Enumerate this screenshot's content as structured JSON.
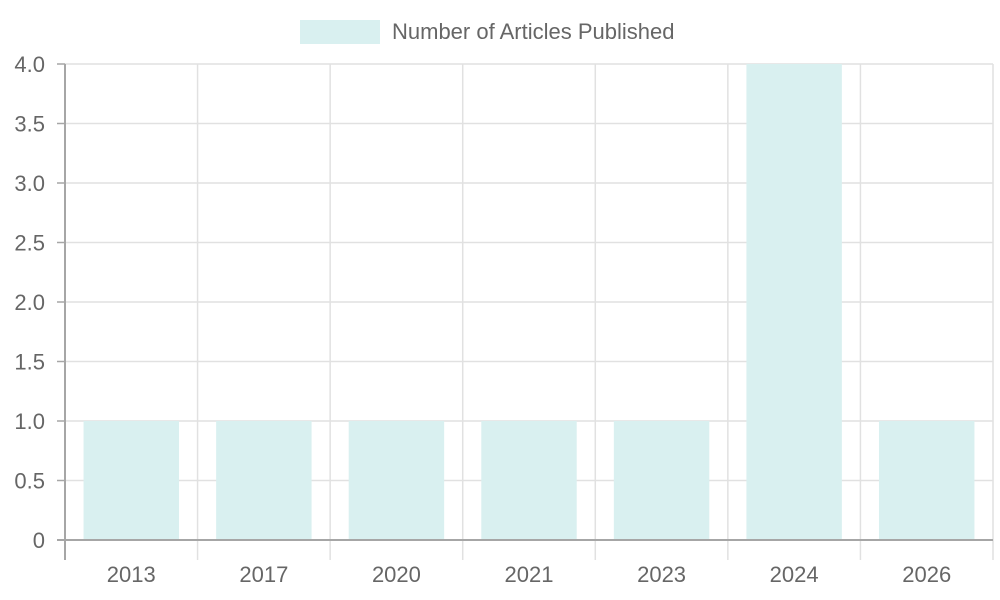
{
  "colors": {
    "bar_fill": "#d9f0f0",
    "grid": "#e1e1e1",
    "axis": "#a6a6a6",
    "text": "#666666"
  },
  "chart_data": {
    "type": "bar",
    "categories": [
      "2013",
      "2017",
      "2020",
      "2021",
      "2023",
      "2024",
      "2026"
    ],
    "series": [
      {
        "name": "Number of Articles Published",
        "values": [
          1,
          1,
          1,
          1,
          1,
          4,
          1
        ]
      }
    ],
    "ylim": [
      0,
      4
    ],
    "yticks": [
      "0",
      "0.5",
      "1.0",
      "1.5",
      "2.0",
      "2.5",
      "3.0",
      "3.5",
      "4.0"
    ],
    "grid": true,
    "legend_position": "top-center"
  }
}
